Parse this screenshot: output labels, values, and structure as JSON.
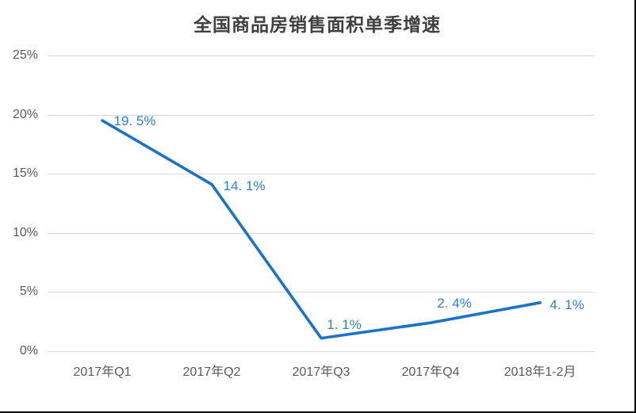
{
  "window": {
    "background": "#ffffff",
    "frame_color": "#000000"
  },
  "chart_data": {
    "type": "line",
    "title": "全国商品房销售面积单季增速",
    "categories": [
      "2017年Q1",
      "2017年Q2",
      "2017年Q3",
      "2017年Q4",
      "2018年1-2月"
    ],
    "values": [
      19.5,
      14.1,
      1.1,
      2.4,
      4.1
    ],
    "data_labels": [
      "19. 5%",
      "14. 1%",
      "1. 1%",
      "2. 4%",
      "4. 1%"
    ],
    "y_ticks": [
      {
        "value": 25,
        "label": "25%"
      },
      {
        "value": 20,
        "label": "20%"
      },
      {
        "value": 15,
        "label": "15%"
      },
      {
        "value": 10,
        "label": "10%"
      },
      {
        "value": 5,
        "label": "5%"
      },
      {
        "value": 0,
        "label": "0%"
      }
    ],
    "ylim": [
      0,
      25
    ],
    "xlabel": "",
    "ylabel": "",
    "grid": "horizontal",
    "legend": "none",
    "markers": "none",
    "colors": {
      "line": "#1b73c7",
      "data_label": "#2e7fd2",
      "grid": "#d9d9d9",
      "axis_text": "#595959",
      "title": "#404040"
    }
  }
}
